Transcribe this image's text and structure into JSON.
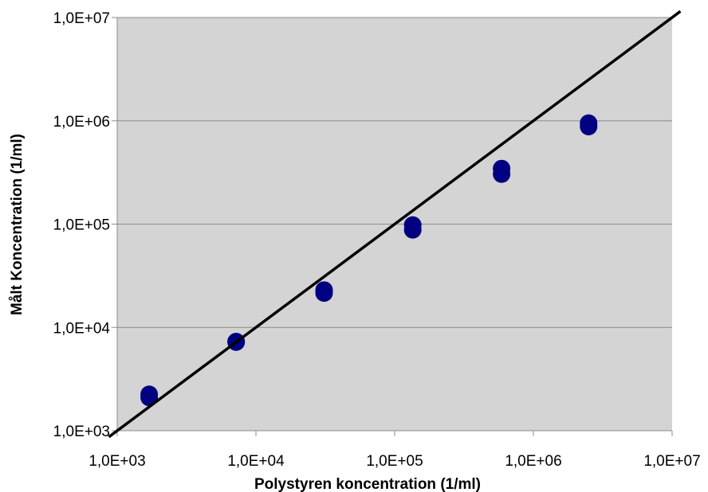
{
  "chart_data": {
    "type": "scatter",
    "xlabel": "Polystyren koncentration (1/ml)",
    "ylabel": "Målt Koncentration (1/ml)",
    "x_scale": "log",
    "y_scale": "log",
    "xlim": [
      1000,
      10000000
    ],
    "ylim": [
      1000,
      10000000
    ],
    "x_ticks": [
      1000,
      10000,
      100000,
      1000000,
      10000000
    ],
    "y_ticks": [
      1000,
      10000,
      100000,
      1000000,
      10000000
    ],
    "x_tick_labels": [
      "1,0E+03",
      "1,0E+04",
      "1,0E+05",
      "1,0E+06",
      "1,0E+07"
    ],
    "y_tick_labels": [
      "1,0E+03",
      "1,0E+04",
      "1,0E+05",
      "1,0E+06",
      "1,0E+07"
    ],
    "grid": "horizontal",
    "plot_background": "#d4d4d4",
    "series": [
      {
        "color": "#000080",
        "marker": "circle",
        "points": [
          {
            "x": 1700,
            "y": 2100
          },
          {
            "x": 1700,
            "y": 2250
          },
          {
            "x": 7200,
            "y": 7200
          },
          {
            "x": 7200,
            "y": 7300
          },
          {
            "x": 31000,
            "y": 21500
          },
          {
            "x": 31000,
            "y": 23000
          },
          {
            "x": 135000,
            "y": 88000
          },
          {
            "x": 135000,
            "y": 98000
          },
          {
            "x": 590000,
            "y": 305000
          },
          {
            "x": 590000,
            "y": 345000
          },
          {
            "x": 2500000,
            "y": 880000
          },
          {
            "x": 2500000,
            "y": 950000
          }
        ]
      },
      {
        "type": "line",
        "color": "#000000",
        "points": [
          {
            "x": 1000,
            "y": 1000
          },
          {
            "x": 10000000,
            "y": 10000000
          }
        ]
      }
    ]
  }
}
